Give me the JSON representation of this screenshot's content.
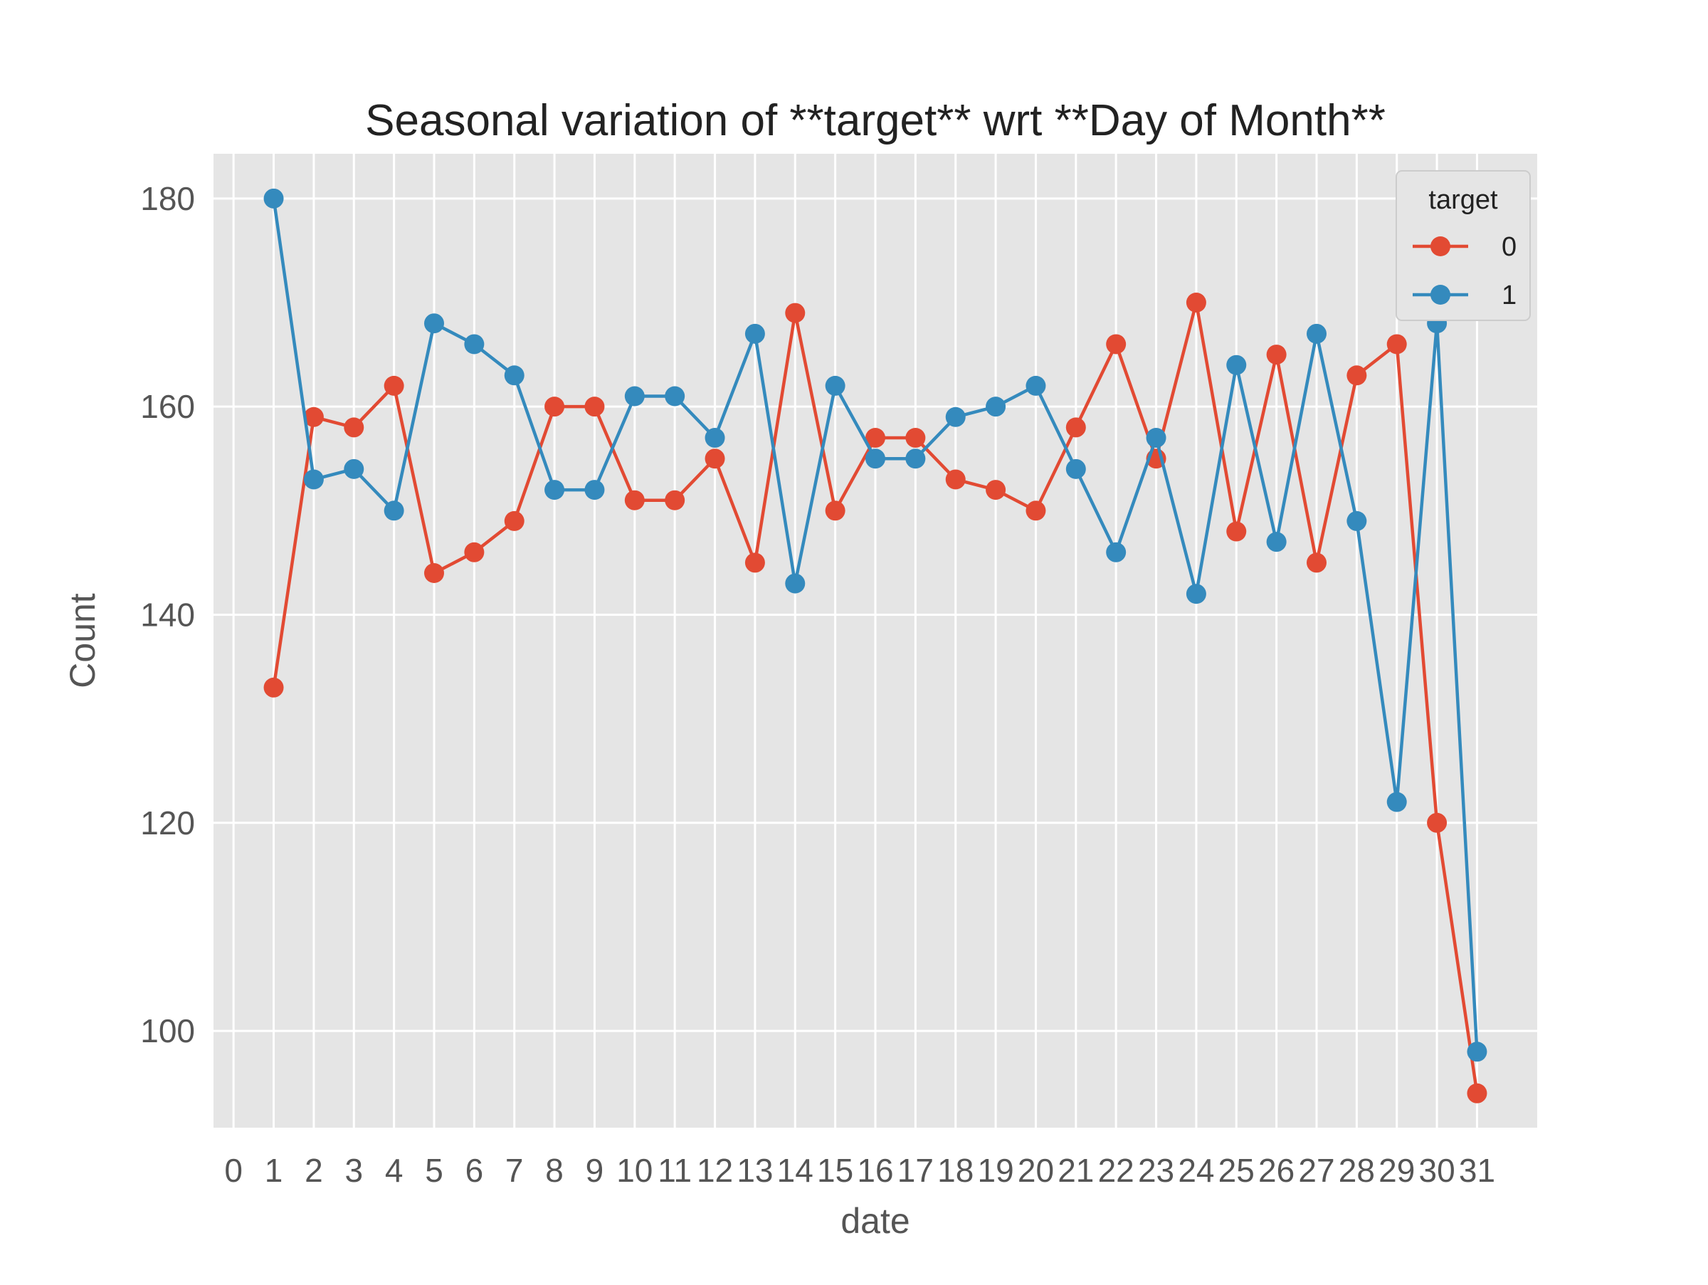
{
  "chart_data": {
    "type": "line",
    "title": "Seasonal variation of **target** wrt **Day of Month**",
    "xlabel": "date",
    "ylabel": "Count",
    "x_ticks": [
      0,
      1,
      2,
      3,
      4,
      5,
      6,
      7,
      8,
      9,
      10,
      11,
      12,
      13,
      14,
      15,
      16,
      17,
      18,
      19,
      20,
      21,
      22,
      23,
      24,
      25,
      26,
      27,
      28,
      29,
      30,
      31
    ],
    "y_ticks": [
      100,
      120,
      140,
      160,
      180
    ],
    "xlim": [
      -0.5,
      32.5
    ],
    "ylim": [
      90.7,
      184.3
    ],
    "grid": true,
    "legend": {
      "title": "target",
      "placement": "top-right"
    },
    "x": [
      1,
      2,
      3,
      4,
      5,
      6,
      7,
      8,
      9,
      10,
      11,
      12,
      13,
      14,
      15,
      16,
      17,
      18,
      19,
      20,
      21,
      22,
      23,
      24,
      25,
      26,
      27,
      28,
      29,
      30,
      31
    ],
    "series": [
      {
        "name": "0",
        "color": "#E24A33",
        "values": [
          133,
          159,
          158,
          162,
          144,
          146,
          149,
          160,
          160,
          151,
          151,
          155,
          145,
          169,
          150,
          157,
          157,
          153,
          152,
          150,
          158,
          166,
          155,
          170,
          148,
          165,
          145,
          163,
          166,
          120,
          94
        ]
      },
      {
        "name": "1",
        "color": "#348ABD",
        "values": [
          180,
          153,
          154,
          150,
          168,
          166,
          163,
          152,
          152,
          161,
          161,
          157,
          167,
          143,
          162,
          155,
          155,
          159,
          160,
          162,
          154,
          146,
          157,
          142,
          164,
          147,
          167,
          149,
          122,
          168,
          98
        ]
      }
    ]
  }
}
